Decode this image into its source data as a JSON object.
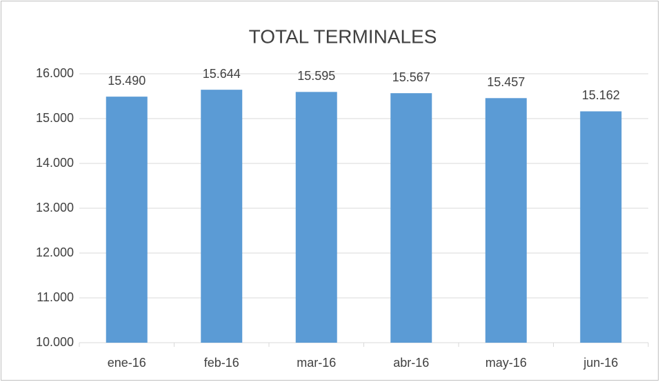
{
  "chart_data": {
    "type": "bar",
    "title": "TOTAL TERMINALES",
    "categories": [
      "ene-16",
      "feb-16",
      "mar-16",
      "abr-16",
      "may-16",
      "jun-16"
    ],
    "values": [
      15490,
      15644,
      15595,
      15567,
      15457,
      15162
    ],
    "value_labels": [
      "15.490",
      "15.644",
      "15.595",
      "15.567",
      "15.457",
      "15.162"
    ],
    "color": "#5b9bd5",
    "ylim": [
      10000,
      16000
    ],
    "yticks": [
      {
        "value": 10000,
        "label": "10.000"
      },
      {
        "value": 11000,
        "label": "11.000"
      },
      {
        "value": 12000,
        "label": "12.000"
      },
      {
        "value": 13000,
        "label": "13.000"
      },
      {
        "value": 14000,
        "label": "14.000"
      },
      {
        "value": 15000,
        "label": "15.000"
      },
      {
        "value": 16000,
        "label": "16.000"
      }
    ],
    "grid": true
  }
}
